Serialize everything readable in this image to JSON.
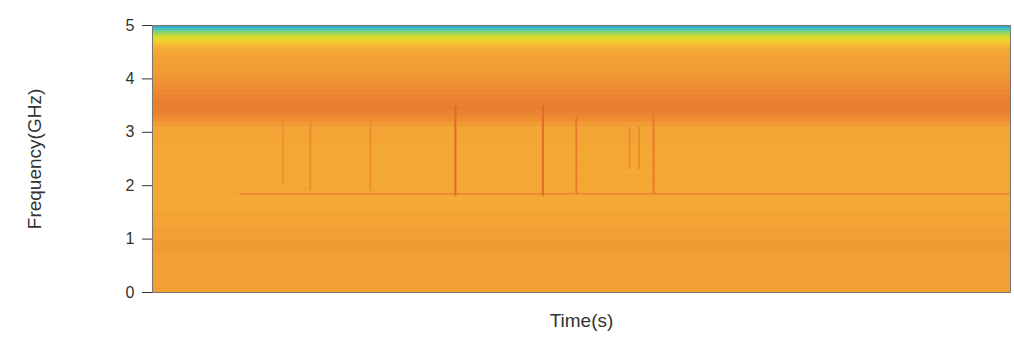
{
  "chart_data": {
    "type": "heatmap",
    "x_label": "Time(s)",
    "y_label": "Frequency(GHz)",
    "xlim": [
      0,
      100
    ],
    "ylim": [
      0,
      5
    ],
    "yticks": [
      0,
      1,
      2,
      3,
      4,
      5
    ],
    "tick_labels": "y",
    "clim": [
      0,
      6
    ],
    "frequency_edges": [
      0,
      0.25,
      0.5,
      0.75,
      1,
      1.25,
      1.5,
      1.75,
      2,
      2.25,
      2.5,
      2.75,
      3,
      3.1,
      3.2,
      3.3,
      3.4,
      3.5,
      3.6,
      3.7,
      3.8,
      3.9,
      4,
      4.1,
      4.2,
      4.3,
      4.4,
      4.5,
      4.6,
      4.65,
      4.7,
      4.75,
      4.8,
      4.85,
      4.9,
      4.95,
      5
    ],
    "band_values": [
      4.5,
      4.5,
      4.5,
      4.6,
      4.5,
      4.4,
      4.3,
      4.3,
      4.3,
      4.3,
      4.3,
      4.35,
      4.4,
      4.6,
      4.9,
      5.1,
      5.2,
      5.2,
      5.1,
      5.0,
      4.9,
      4.8,
      4.7,
      4.6,
      4.55,
      4.5,
      4.4,
      4.2,
      3.9,
      3.6,
      3.2,
      2.9,
      2.4,
      1.9,
      1.2,
      0.5
    ],
    "vertical_lines": [
      {
        "time": 15.2,
        "freq_start": 2.0,
        "freq_end": 3.3,
        "value": 4.8
      },
      {
        "time": 18.4,
        "freq_start": 1.9,
        "freq_end": 3.3,
        "value": 4.9
      },
      {
        "time": 25.4,
        "freq_start": 1.9,
        "freq_end": 3.3,
        "value": 4.9
      },
      {
        "time": 35.3,
        "freq_start": 1.8,
        "freq_end": 3.5,
        "value": 5.6
      },
      {
        "time": 45.5,
        "freq_start": 1.8,
        "freq_end": 3.5,
        "value": 5.6
      },
      {
        "time": 49.4,
        "freq_start": 1.85,
        "freq_end": 3.3,
        "value": 5.3
      },
      {
        "time": 55.6,
        "freq_start": 2.3,
        "freq_end": 3.1,
        "value": 4.9
      },
      {
        "time": 56.7,
        "freq_start": 2.3,
        "freq_end": 3.1,
        "value": 4.9
      },
      {
        "time": 58.4,
        "freq_start": 1.85,
        "freq_end": 3.4,
        "value": 5.3
      }
    ],
    "horizontal_lines": [
      {
        "freq": 1.85,
        "time_start": 10.2,
        "time_end": 100,
        "value": 5.1
      }
    ]
  }
}
